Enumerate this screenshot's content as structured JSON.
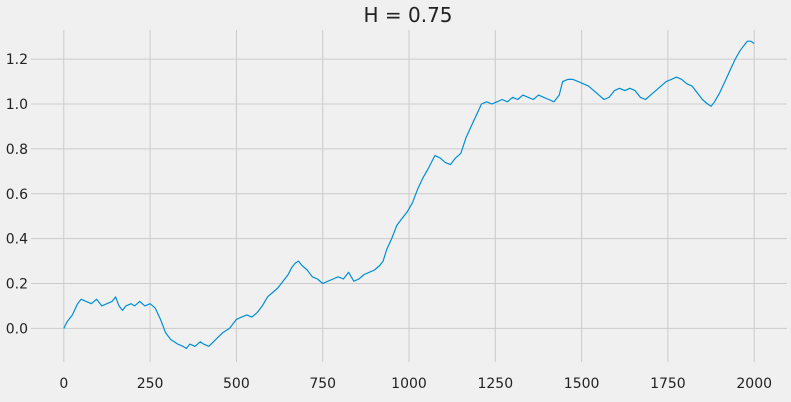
{
  "chart_data": {
    "type": "line",
    "title": "H = 0.75",
    "xlabel": "",
    "ylabel": "",
    "xlim": [
      -95,
      2095
    ],
    "ylim": [
      -0.15,
      1.33
    ],
    "xticks": [
      0,
      250,
      500,
      750,
      1000,
      1250,
      1500,
      1750,
      2000
    ],
    "yticks": [
      0.0,
      0.2,
      0.4,
      0.6,
      0.8,
      1.0,
      1.2
    ],
    "ytick_labels": [
      "0.0",
      "0.2",
      "0.4",
      "0.6",
      "0.8",
      "1.0",
      "1.2"
    ],
    "grid": true,
    "colors": {
      "line": "#008fd5",
      "background": "#f0f0f0",
      "grid": "#cbcbcb"
    },
    "series": [
      {
        "x": [
          0,
          10,
          25,
          40,
          50,
          65,
          80,
          95,
          110,
          125,
          140,
          150,
          160,
          170,
          180,
          195,
          205,
          220,
          235,
          250,
          265,
          280,
          295,
          310,
          320,
          330,
          345,
          355,
          365,
          380,
          395,
          405,
          420,
          440,
          460,
          480,
          500,
          515,
          530,
          545,
          560,
          575,
          590,
          605,
          620,
          635,
          650,
          660,
          670,
          680,
          690,
          705,
          720,
          735,
          750,
          765,
          780,
          795,
          810,
          825,
          840,
          855,
          870,
          885,
          900,
          915,
          925,
          935,
          950,
          965,
          980,
          995,
          1010,
          1025,
          1040,
          1055,
          1065,
          1075,
          1090,
          1105,
          1120,
          1135,
          1150,
          1165,
          1180,
          1195,
          1210,
          1225,
          1240,
          1255,
          1270,
          1285,
          1300,
          1315,
          1330,
          1345,
          1360,
          1375,
          1390,
          1405,
          1420,
          1435,
          1445,
          1460,
          1475,
          1490,
          1505,
          1520,
          1535,
          1550,
          1565,
          1580,
          1595,
          1610,
          1625,
          1640,
          1655,
          1670,
          1685,
          1700,
          1715,
          1730,
          1745,
          1760,
          1775,
          1790,
          1805,
          1820,
          1835,
          1850,
          1865,
          1875,
          1885,
          1900,
          1915,
          1930,
          1945,
          1960,
          1970,
          1980,
          1990,
          2000
        ],
        "y": [
          0.0,
          0.03,
          0.06,
          0.11,
          0.13,
          0.12,
          0.11,
          0.13,
          0.1,
          0.11,
          0.12,
          0.14,
          0.1,
          0.08,
          0.1,
          0.11,
          0.1,
          0.12,
          0.1,
          0.11,
          0.09,
          0.04,
          -0.02,
          -0.05,
          -0.06,
          -0.07,
          -0.08,
          -0.09,
          -0.07,
          -0.08,
          -0.06,
          -0.07,
          -0.08,
          -0.05,
          -0.02,
          0.0,
          0.04,
          0.05,
          0.06,
          0.05,
          0.07,
          0.1,
          0.14,
          0.16,
          0.18,
          0.21,
          0.24,
          0.27,
          0.29,
          0.3,
          0.28,
          0.26,
          0.23,
          0.22,
          0.2,
          0.21,
          0.22,
          0.23,
          0.22,
          0.25,
          0.21,
          0.22,
          0.24,
          0.25,
          0.26,
          0.28,
          0.3,
          0.35,
          0.4,
          0.46,
          0.49,
          0.52,
          0.56,
          0.62,
          0.67,
          0.71,
          0.74,
          0.77,
          0.76,
          0.74,
          0.73,
          0.76,
          0.78,
          0.85,
          0.9,
          0.95,
          1.0,
          1.01,
          1.0,
          1.01,
          1.02,
          1.01,
          1.03,
          1.02,
          1.04,
          1.03,
          1.02,
          1.04,
          1.03,
          1.02,
          1.01,
          1.04,
          1.1,
          1.11,
          1.11,
          1.1,
          1.09,
          1.08,
          1.06,
          1.04,
          1.02,
          1.03,
          1.06,
          1.07,
          1.06,
          1.07,
          1.06,
          1.03,
          1.02,
          1.04,
          1.06,
          1.08,
          1.1,
          1.11,
          1.12,
          1.11,
          1.09,
          1.08,
          1.05,
          1.02,
          1.0,
          0.99,
          1.01,
          1.05,
          1.1,
          1.15,
          1.2,
          1.24,
          1.26,
          1.28,
          1.28,
          1.27
        ]
      }
    ]
  }
}
